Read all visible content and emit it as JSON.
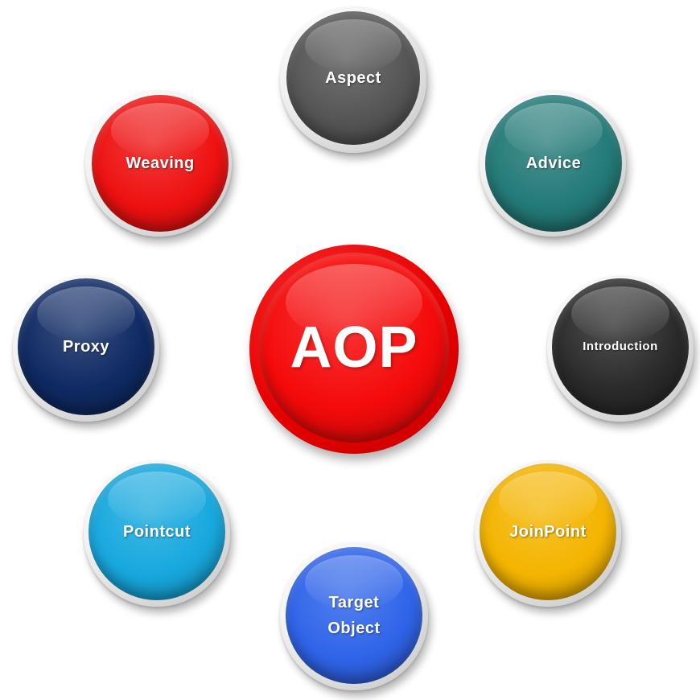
{
  "center": {
    "label": "AOP",
    "color": "#f50a0a"
  },
  "nodes": {
    "aspect": {
      "label": "Aspect",
      "color": "#555555"
    },
    "advice": {
      "label": "Advice",
      "color": "#237a78"
    },
    "weaving": {
      "label": "Weaving",
      "color": "#ee1111"
    },
    "proxy": {
      "label": "Proxy",
      "color": "#0f2a63"
    },
    "introduction": {
      "label": "Introduction",
      "color": "#2a2a2a"
    },
    "pointcut": {
      "label": "Pointcut",
      "color": "#17a8de"
    },
    "joinpoint": {
      "label": "JoinPoint",
      "color": "#f4b400"
    },
    "target_line1": {
      "label": "Target",
      "color": "#2f64e9"
    },
    "target_line2": {
      "label": "Object"
    }
  }
}
